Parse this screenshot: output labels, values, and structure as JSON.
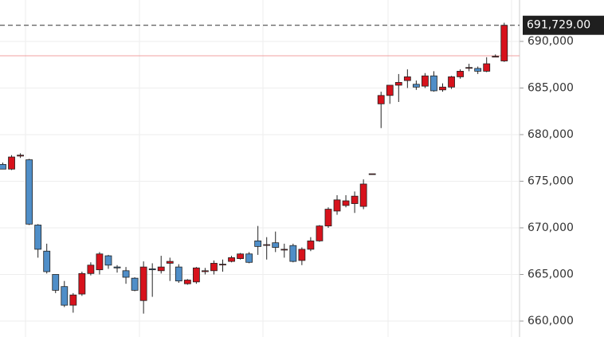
{
  "chart_data": {
    "type": "candlestick",
    "open": [
      676800,
      676300,
      677700,
      677300,
      670300,
      667500,
      665000,
      663700,
      661700,
      662900,
      665100,
      665500,
      667000,
      665800,
      665400,
      664600,
      662200,
      665600,
      665400,
      666200,
      665800,
      664000,
      664200,
      665300,
      665400,
      666100,
      666400,
      666700,
      667200,
      668600,
      668200,
      668400,
      667700,
      668100,
      666500,
      667700,
      668600,
      670200,
      671800,
      672400,
      672600,
      672300,
      675800,
      683300,
      684200,
      685300,
      685800,
      685400,
      685200,
      686300,
      684800,
      685100,
      686200,
      687200,
      687100,
      686800,
      688400,
      687900
    ],
    "high": [
      677000,
      677800,
      678000,
      677400,
      670400,
      668300,
      665000,
      664300,
      663000,
      665300,
      666300,
      667400,
      667100,
      666000,
      665800,
      664700,
      666400,
      666200,
      667000,
      666800,
      666100,
      664500,
      665800,
      665700,
      666500,
      666600,
      667000,
      667300,
      667400,
      670200,
      669000,
      669600,
      668300,
      668300,
      667900,
      669000,
      670300,
      672200,
      673500,
      673500,
      673900,
      675200,
      675800,
      684600,
      685300,
      686500,
      687000,
      685800,
      686600,
      686800,
      685500,
      686300,
      687000,
      687600,
      687300,
      688300,
      688600,
      692000
    ],
    "low": [
      676300,
      676200,
      677500,
      670300,
      666800,
      665100,
      663000,
      661500,
      660900,
      662700,
      664900,
      665000,
      665600,
      665200,
      664000,
      663200,
      660800,
      662600,
      665100,
      664300,
      664100,
      663900,
      664000,
      665000,
      665000,
      665300,
      666300,
      666600,
      666200,
      667100,
      666600,
      667400,
      666800,
      666300,
      666000,
      667500,
      668500,
      670000,
      671400,
      672200,
      671600,
      672000,
      675800,
      680700,
      683300,
      683500,
      685000,
      684800,
      685000,
      684600,
      684600,
      684900,
      686000,
      686800,
      686500,
      686700,
      688400,
      687800
    ],
    "close": [
      676300,
      677600,
      677800,
      670400,
      667700,
      665300,
      663300,
      661700,
      662800,
      665100,
      666000,
      667200,
      666000,
      665700,
      664700,
      663300,
      665800,
      665500,
      665800,
      666400,
      664300,
      664400,
      665700,
      665400,
      666200,
      666100,
      666800,
      667200,
      666300,
      668000,
      668200,
      667900,
      667700,
      666400,
      667700,
      668600,
      670200,
      672000,
      673000,
      672900,
      673400,
      674700,
      675800,
      684200,
      685300,
      685600,
      686200,
      685100,
      686300,
      684700,
      685100,
      686200,
      686800,
      687200,
      686800,
      687600,
      688400,
      691729
    ],
    "up_color": "#d7121c",
    "down_color": "#4f8ec8",
    "ylim": [
      658290,
      694440
    ],
    "yticks": [
      {
        "value": 660000,
        "label": "660,000"
      },
      {
        "value": 665000,
        "label": "665,000"
      },
      {
        "value": 670000,
        "label": "670,000"
      },
      {
        "value": 675000,
        "label": "675,000"
      },
      {
        "value": 680000,
        "label": "680,000"
      },
      {
        "value": 685000,
        "label": "685,000"
      },
      {
        "value": 690000,
        "label": "690,000"
      }
    ],
    "grid": true,
    "last_price": {
      "value": 691729,
      "label": "691,729.00"
    },
    "reference_line": 688460,
    "reference_color": "#f0a0a0"
  }
}
